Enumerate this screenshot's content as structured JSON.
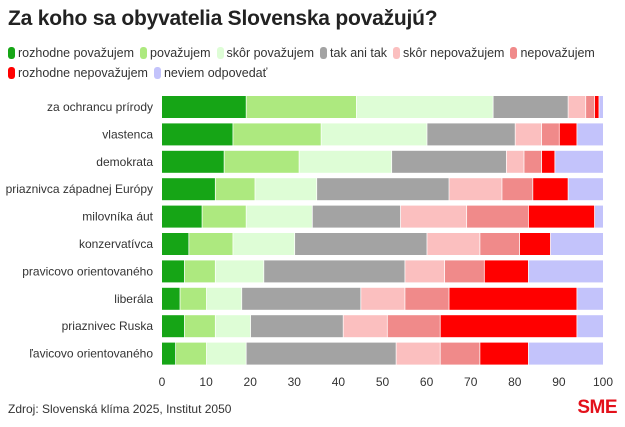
{
  "title": "Za koho sa obyvatelia Slovenska považujú?",
  "source": "Zdroj: Slovenská klíma 2025, Institut 2050",
  "logo": "SME",
  "chart_data": {
    "type": "bar",
    "orientation": "horizontal",
    "stacked": true,
    "title": "Za koho sa obyvatelia Slovenska považujú?",
    "xlabel": "",
    "ylabel": "",
    "xlim": [
      0,
      100
    ],
    "xticks": [
      "0",
      "10",
      "20",
      "30",
      "40",
      "50",
      "60",
      "70",
      "80",
      "90",
      "100"
    ],
    "legend_position": "top",
    "categories": [
      "za ochrancu prírody",
      "vlastenca",
      "demokrata",
      "priaznivca západnej Európy",
      "milovníka áut",
      "konzervatívca",
      "pravicovo orientovaného",
      "liberála",
      "priaznivec Ruska",
      "ľavicovo orientovaného"
    ],
    "series": [
      {
        "name": "rozhodne považujem",
        "color": "#16a516",
        "values": [
          19,
          16,
          14,
          12,
          9,
          6,
          5,
          4,
          5,
          3
        ]
      },
      {
        "name": "považujem",
        "color": "#ade97f",
        "values": [
          25,
          20,
          17,
          9,
          10,
          10,
          7,
          6,
          7,
          7
        ]
      },
      {
        "name": "skôr považujem",
        "color": "#defdd6",
        "values": [
          31,
          24,
          21,
          14,
          15,
          14,
          11,
          8,
          8,
          9
        ]
      },
      {
        "name": "tak ani tak",
        "color": "#a3a3a3",
        "values": [
          17,
          20,
          26,
          30,
          20,
          30,
          32,
          27,
          21,
          34
        ]
      },
      {
        "name": "skôr nepovažujem",
        "color": "#fbbfbf",
        "values": [
          4,
          6,
          4,
          12,
          15,
          12,
          9,
          10,
          10,
          10
        ]
      },
      {
        "name": "nepovažujem",
        "color": "#f08a8a",
        "values": [
          2,
          4,
          4,
          7,
          14,
          9,
          9,
          10,
          12,
          9
        ]
      },
      {
        "name": "rozhodne nepovažujem",
        "color": "#ff0000",
        "values": [
          1,
          4,
          3,
          8,
          15,
          7,
          10,
          29,
          31,
          11
        ]
      },
      {
        "name": "neviem odpovedať",
        "color": "#c3c3fb",
        "values": [
          1,
          6,
          11,
          8,
          2,
          12,
          17,
          6,
          6,
          17
        ]
      }
    ]
  }
}
